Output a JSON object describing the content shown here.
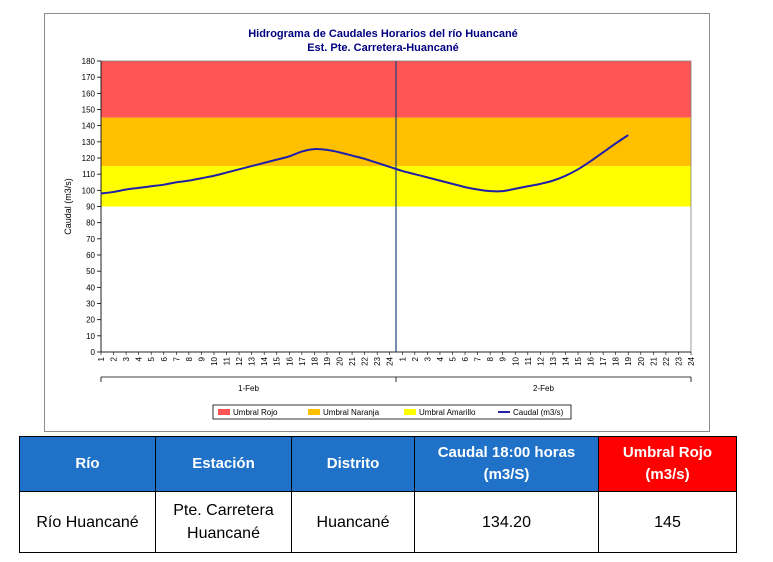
{
  "chart_data": {
    "type": "line",
    "title": "Hidrograma de Caudales Horarios del río Huancané",
    "subtitle": "Est. Pte. Carretera-Huancané",
    "ylabel": "Caudal  (m3/s)",
    "xlabel": "",
    "ylim": [
      0,
      180
    ],
    "yticks": [
      0,
      10,
      20,
      30,
      40,
      50,
      60,
      70,
      80,
      90,
      100,
      110,
      120,
      130,
      140,
      150,
      160,
      170,
      180
    ],
    "hour_ticks": [
      "1",
      "2",
      "3",
      "4",
      "5",
      "6",
      "7",
      "8",
      "9",
      "10",
      "11",
      "12",
      "13",
      "14",
      "15",
      "16",
      "17",
      "18",
      "19",
      "20",
      "21",
      "22",
      "23",
      "24"
    ],
    "days": [
      "1-Feb",
      "2-Feb"
    ],
    "grid": false,
    "legend_position": "bottom",
    "colors": {
      "umbral_rojo": "#ff5555",
      "umbral_naranja": "#ffc000",
      "umbral_amarillo": "#ffff00",
      "caudal": "#1f1fa8",
      "divider": "#1f3f7f"
    },
    "bands": [
      {
        "name": "Umbral Rojo",
        "from": 145,
        "to": 180
      },
      {
        "name": "Umbral Naranja",
        "from": 115,
        "to": 145
      },
      {
        "name": "Umbral Amarillo",
        "from": 90,
        "to": 115
      }
    ],
    "series": [
      {
        "name": "Caudal (m3/s)",
        "x": [
          "1-Feb 1",
          "1-Feb 2",
          "1-Feb 3",
          "1-Feb 4",
          "1-Feb 5",
          "1-Feb 6",
          "1-Feb 7",
          "1-Feb 8",
          "1-Feb 9",
          "1-Feb 10",
          "1-Feb 11",
          "1-Feb 12",
          "1-Feb 13",
          "1-Feb 14",
          "1-Feb 15",
          "1-Feb 16",
          "1-Feb 17",
          "1-Feb 18",
          "1-Feb 19",
          "1-Feb 20",
          "1-Feb 21",
          "1-Feb 22",
          "1-Feb 23",
          "1-Feb 24",
          "2-Feb 1",
          "2-Feb 2",
          "2-Feb 3",
          "2-Feb 4",
          "2-Feb 5",
          "2-Feb 6",
          "2-Feb 7",
          "2-Feb 8",
          "2-Feb 9",
          "2-Feb 10",
          "2-Feb 11",
          "2-Feb 12",
          "2-Feb 13",
          "2-Feb 14",
          "2-Feb 15",
          "2-Feb 16",
          "2-Feb 17",
          "2-Feb 18",
          "2-Feb 19"
        ],
        "values": [
          98,
          99,
          100.5,
          101.5,
          102.5,
          103.5,
          105,
          106,
          107.5,
          109,
          111,
          113,
          115,
          117,
          119,
          121,
          124,
          125.5,
          125,
          123.5,
          121.5,
          119.5,
          117,
          114.5,
          112,
          110,
          108,
          106,
          104,
          102,
          100.5,
          99.5,
          99.5,
          101,
          102.5,
          104,
          106,
          109,
          113,
          118,
          123.5,
          129,
          134.2
        ]
      }
    ]
  },
  "table": {
    "headers": [
      "Río",
      "Estación",
      "Distrito",
      "Caudal 18:00 horas (m3/S)",
      "Umbral Rojo (m3/s)"
    ],
    "row": [
      "Río Huancané",
      "Pte. Carretera Huancané",
      "Huancané",
      "134.20",
      "145"
    ]
  }
}
